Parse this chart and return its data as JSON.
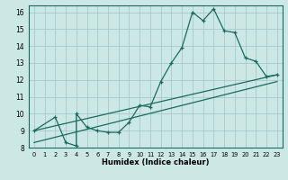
{
  "title": "",
  "xlabel": "Humidex (Indice chaleur)",
  "bg_color": "#cce8e4",
  "grid_color": "#aacfcb",
  "line_color": "#1a6b5a",
  "xlim": [
    -0.5,
    23.5
  ],
  "ylim": [
    8,
    16.4
  ],
  "xticks": [
    0,
    1,
    2,
    3,
    4,
    5,
    6,
    7,
    8,
    9,
    10,
    11,
    12,
    13,
    14,
    15,
    16,
    17,
    18,
    19,
    20,
    21,
    22,
    23
  ],
  "yticks": [
    8,
    9,
    10,
    11,
    12,
    13,
    14,
    15,
    16
  ],
  "main_x": [
    0,
    2,
    3,
    4,
    4,
    5,
    6,
    7,
    8,
    9,
    10,
    11,
    12,
    13,
    14,
    15,
    16,
    17,
    18,
    19,
    20,
    21,
    22,
    23
  ],
  "main_y": [
    9.0,
    9.8,
    8.3,
    8.1,
    10.0,
    9.2,
    9.0,
    8.9,
    8.9,
    9.5,
    10.5,
    10.4,
    11.9,
    13.0,
    13.9,
    16.0,
    15.5,
    16.2,
    14.9,
    14.8,
    13.3,
    13.1,
    12.2,
    12.3
  ],
  "line2_x": [
    0,
    23
  ],
  "line2_y": [
    9.0,
    12.3
  ],
  "line3_x": [
    0,
    23
  ],
  "line3_y": [
    8.3,
    11.9
  ]
}
